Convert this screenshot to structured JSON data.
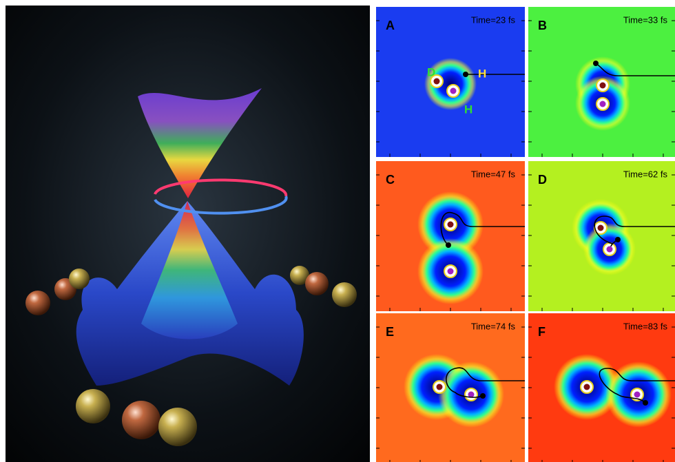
{
  "figure": {
    "panels": [
      {
        "label": "A",
        "time": "Time=23 fs"
      },
      {
        "label": "B",
        "time": "Time=33 fs"
      },
      {
        "label": "C",
        "time": "Time=47 fs"
      },
      {
        "label": "D",
        "time": "Time=62 fs"
      },
      {
        "label": "E",
        "time": "Time=74 fs"
      },
      {
        "label": "F",
        "time": "Time=83 fs"
      }
    ],
    "annotations": [
      "D",
      "H",
      "H"
    ]
  }
}
